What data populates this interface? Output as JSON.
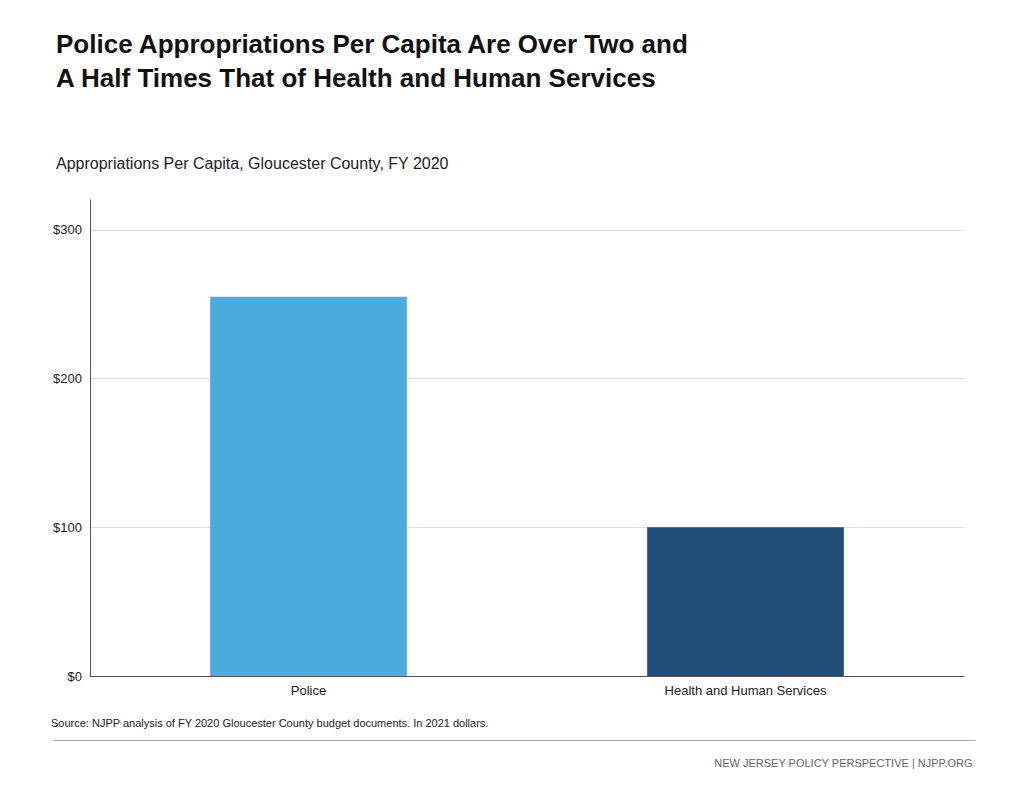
{
  "chart_data": {
    "type": "bar",
    "title": "Police Appropriations Per Capita Are Over Two and\nA Half Times That of Health and Human Services",
    "subtitle": "Appropriations Per Capita, Gloucester County, FY 2020",
    "categories": [
      "Police",
      "Health and Human Services"
    ],
    "values": [
      255,
      100
    ],
    "colors": [
      "#4BAADE",
      "#1F4E79"
    ],
    "ylim": [
      0,
      320
    ],
    "yticks": [
      {
        "value": 0,
        "label": "$0"
      },
      {
        "value": 100,
        "label": "$100"
      },
      {
        "value": 200,
        "label": "$200"
      },
      {
        "value": 300,
        "label": "$300"
      }
    ],
    "grid": true,
    "annotations": [
      "Source: NJPP analysis of FY 2020 Gloucester County budget documents. In 2021 dollars.",
      "NEW JERSEY POLICY PERSPECTIVE | NJPP.ORG"
    ]
  }
}
